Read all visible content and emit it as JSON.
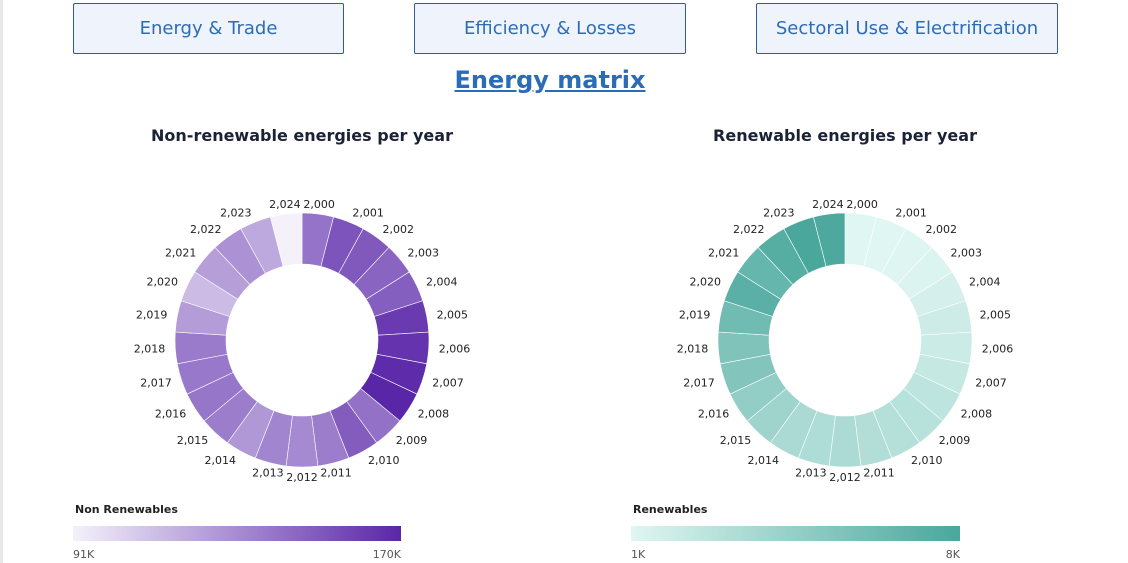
{
  "nav": {
    "btn_energy_trade": "Energy & Trade",
    "btn_efficiency_losses": "Efficiency & Losses",
    "btn_sectoral_use": "Sectoral Use & Electrification"
  },
  "page_title": "Energy matrix",
  "legends": {
    "nonrenewable": {
      "title": "Non Renewables",
      "min": "91K",
      "max": "170K",
      "color_low": "#f4f1fb",
      "color_high": "#5a26a8"
    },
    "renewable": {
      "title": "Renewables",
      "min": "1K",
      "max": "8K",
      "color_low": "#e0f6f2",
      "color_high": "#49a79c"
    }
  },
  "chart_data": [
    {
      "type": "donut",
      "title": "Non-renewable energies per year",
      "legend_title": "Non Renewables",
      "color_scale": {
        "min": 91000,
        "max": 170000,
        "low": "#f4f1fb",
        "high": "#5a26a8"
      },
      "categories": [
        "2,000",
        "2,001",
        "2,002",
        "2,003",
        "2,004",
        "2,005",
        "2,006",
        "2,007",
        "2,008",
        "2,009",
        "2,010",
        "2,011",
        "2,012",
        "2,013",
        "2,014",
        "2,015",
        "2,016",
        "2,017",
        "2,018",
        "2,019",
        "2,020",
        "2,021",
        "2,022",
        "2,023",
        "2,024"
      ],
      "values": [
        140000,
        152000,
        150000,
        146000,
        148000,
        162000,
        165000,
        168000,
        170000,
        141000,
        149000,
        136000,
        131000,
        133000,
        126000,
        136000,
        139000,
        138000,
        137000,
        124000,
        112000,
        123000,
        128000,
        119000,
        91000
      ]
    },
    {
      "type": "donut",
      "title": "Renewable energies per year",
      "legend_title": "Renewables",
      "color_scale": {
        "min": 1000,
        "max": 8000,
        "low": "#e0f6f2",
        "high": "#49a79c"
      },
      "categories": [
        "2,000",
        "2,001",
        "2,002",
        "2,003",
        "2,004",
        "2,005",
        "2,006",
        "2,007",
        "2,008",
        "2,009",
        "2,010",
        "2,011",
        "2,012",
        "2,013",
        "2,014",
        "2,015",
        "2,016",
        "2,017",
        "2,018",
        "2,019",
        "2,020",
        "2,021",
        "2,022",
        "2,023",
        "2,024"
      ],
      "values": [
        1000,
        1000,
        1100,
        1200,
        1500,
        1900,
        2000,
        2200,
        2600,
        2900,
        3000,
        3100,
        3400,
        3300,
        3500,
        4000,
        4600,
        5300,
        5500,
        6200,
        7200,
        6700,
        7400,
        8000,
        7800
      ]
    }
  ]
}
